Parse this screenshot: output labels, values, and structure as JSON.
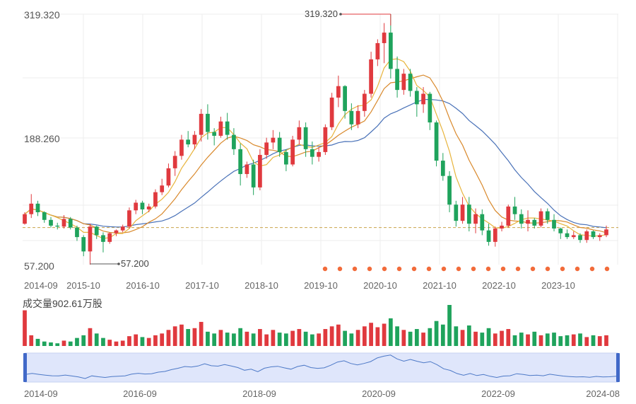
{
  "colors": {
    "up": "#e0393e",
    "down": "#1fa35c",
    "ma5": "#e8b43c",
    "ma10": "#d9892c",
    "ma20": "#4a72b8",
    "dashed_ref": "#c9a24a",
    "dot": "#f26b3a",
    "grid": "#eeeeee",
    "navigator_fill": "#dfe6fb",
    "navigator_line": "#4d79c7",
    "handle": "#4169c8"
  },
  "chart_data": {
    "type": "candlestick",
    "y_axis_labels": [
      "319.320",
      "188.260",
      "57.200"
    ],
    "ylim": [
      57.2,
      319.32
    ],
    "dashed_reference_level": 96,
    "x_tick_labels": [
      "2014-09",
      "2015-10",
      "2016-10",
      "2017-10",
      "2018-10",
      "2019-10",
      "2020-10",
      "2021-10",
      "2022-10",
      "2023-10"
    ],
    "annotations": {
      "max": {
        "label": "319.320",
        "value": 319.32
      },
      "min": {
        "label": "57.200",
        "value": 57.2
      }
    },
    "candles_ohlc": [
      [
        100,
        112,
        99,
        110
      ],
      [
        110,
        131,
        106,
        121
      ],
      [
        121,
        124,
        108,
        112
      ],
      [
        112,
        113,
        101,
        104
      ],
      [
        104,
        107,
        96,
        98
      ],
      [
        98,
        101,
        94,
        97
      ],
      [
        97,
        109,
        95,
        105
      ],
      [
        105,
        107,
        94,
        96
      ],
      [
        96,
        98,
        82,
        86
      ],
      [
        86,
        88,
        66,
        71
      ],
      [
        71,
        100,
        57.2,
        97
      ],
      [
        97,
        98,
        84,
        88
      ],
      [
        88,
        91,
        70,
        81
      ],
      [
        81,
        91,
        79,
        90
      ],
      [
        90,
        94,
        87,
        93
      ],
      [
        93,
        99,
        91,
        97
      ],
      [
        97,
        117,
        95,
        114
      ],
      [
        114,
        125,
        110,
        122
      ],
      [
        122,
        124,
        110,
        115
      ],
      [
        115,
        121,
        112,
        118
      ],
      [
        118,
        136,
        116,
        133
      ],
      [
        133,
        147,
        130,
        140
      ],
      [
        140,
        163,
        138,
        158
      ],
      [
        158,
        176,
        150,
        171
      ],
      [
        171,
        193,
        167,
        188
      ],
      [
        188,
        197,
        180,
        183
      ],
      [
        183,
        197,
        178,
        193
      ],
      [
        193,
        220,
        186,
        215
      ],
      [
        215,
        225,
        188,
        196
      ],
      [
        196,
        200,
        182,
        192
      ],
      [
        192,
        212,
        190,
        207
      ],
      [
        207,
        216,
        188,
        193
      ],
      [
        193,
        200,
        172,
        178
      ],
      [
        178,
        184,
        140,
        152
      ],
      [
        152,
        165,
        148,
        162
      ],
      [
        162,
        167,
        130,
        138
      ],
      [
        138,
        178,
        135,
        172
      ],
      [
        172,
        190,
        168,
        185
      ],
      [
        185,
        198,
        178,
        190
      ],
      [
        190,
        196,
        170,
        175
      ],
      [
        175,
        178,
        155,
        162
      ],
      [
        162,
        192,
        160,
        188
      ],
      [
        188,
        208,
        183,
        201
      ],
      [
        201,
        206,
        170,
        178
      ],
      [
        178,
        186,
        162,
        170
      ],
      [
        170,
        180,
        165,
        175
      ],
      [
        175,
        204,
        172,
        201
      ],
      [
        201,
        237,
        198,
        232
      ],
      [
        232,
        255,
        222,
        244
      ],
      [
        244,
        245,
        210,
        218
      ],
      [
        218,
        226,
        198,
        204
      ],
      [
        204,
        224,
        200,
        218
      ],
      [
        218,
        240,
        212,
        236
      ],
      [
        236,
        280,
        232,
        272
      ],
      [
        272,
        293,
        265,
        289
      ],
      [
        289,
        310,
        268,
        300
      ],
      [
        300,
        319.32,
        252,
        262
      ],
      [
        262,
        275,
        232,
        240
      ],
      [
        240,
        262,
        235,
        257
      ],
      [
        257,
        262,
        233,
        239
      ],
      [
        239,
        243,
        212,
        225
      ],
      [
        225,
        243,
        216,
        236
      ],
      [
        236,
        238,
        198,
        206
      ],
      [
        206,
        208,
        160,
        166
      ],
      [
        166,
        174,
        145,
        150
      ],
      [
        150,
        155,
        112,
        120
      ],
      [
        120,
        124,
        97,
        103
      ],
      [
        103,
        128,
        100,
        120
      ],
      [
        120,
        128,
        92,
        100
      ],
      [
        100,
        116,
        90,
        110
      ],
      [
        110,
        115,
        88,
        93
      ],
      [
        93,
        100,
        77,
        81
      ],
      [
        81,
        97,
        76,
        95
      ],
      [
        95,
        102,
        92,
        98
      ],
      [
        98,
        120,
        96,
        118
      ],
      [
        118,
        128,
        104,
        110
      ],
      [
        110,
        115,
        95,
        100
      ],
      [
        100,
        114,
        92,
        104
      ],
      [
        104,
        106,
        95,
        98
      ],
      [
        98,
        116,
        96,
        113
      ],
      [
        113,
        116,
        100,
        104
      ],
      [
        104,
        110,
        92,
        95
      ],
      [
        95,
        96,
        84,
        90
      ],
      [
        90,
        94,
        84,
        86
      ],
      [
        86,
        92,
        84,
        88
      ],
      [
        88,
        90,
        80,
        83
      ],
      [
        83,
        94,
        80,
        92
      ],
      [
        92,
        93,
        84,
        86
      ],
      [
        86,
        90,
        82,
        88
      ],
      [
        88,
        98,
        86,
        94
      ]
    ],
    "ma_lines_values": {
      "ma5": [
        105,
        110,
        112,
        110,
        106,
        103,
        100,
        96,
        93,
        88,
        86,
        86,
        86,
        88,
        90,
        93,
        97,
        103,
        108,
        114,
        120,
        128,
        138,
        150,
        162,
        173,
        182,
        191,
        198,
        200,
        200,
        198,
        194,
        185,
        176,
        168,
        163,
        165,
        168,
        172,
        175,
        176,
        180,
        182,
        182,
        181,
        184,
        196,
        212,
        228,
        236,
        236,
        232,
        238,
        255,
        275,
        292,
        295,
        284,
        268,
        252,
        240,
        228,
        210,
        190,
        170,
        148,
        128,
        115,
        108,
        104,
        102,
        98,
        96,
        95,
        98,
        103,
        105,
        106,
        106,
        104,
        103,
        101,
        97,
        93,
        90,
        88,
        87,
        87,
        88
      ]
    }
  },
  "chart_text": {
    "volume_label": "成交量902.61万股",
    "navigator_ticks": [
      "2014-09",
      "2016-09",
      "2018-09",
      "2020-09",
      "2022-09",
      "2024-08"
    ]
  }
}
